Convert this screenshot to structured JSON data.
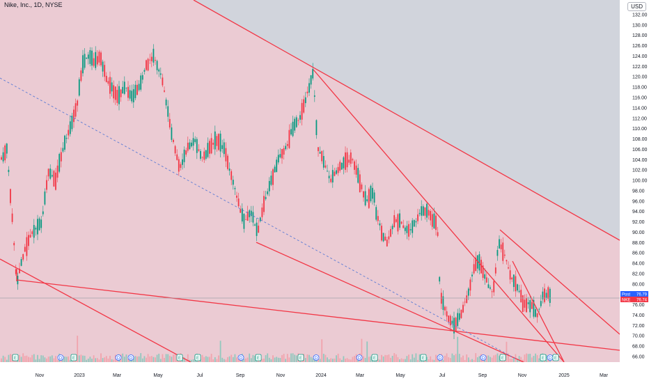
{
  "title": "Nike, Inc., 1D, NYSE",
  "currency": "USD",
  "chart_data": {
    "type": "candlestick",
    "y_ticks": [
      66,
      68,
      70,
      72,
      74,
      76,
      78,
      80,
      82,
      84,
      86,
      88,
      90,
      92,
      94,
      96,
      98,
      100,
      102,
      104,
      106,
      108,
      110,
      112,
      114,
      116,
      118,
      120,
      122,
      124,
      126,
      128,
      130,
      132
    ],
    "x_tick_labels": [
      "Nov",
      "2023",
      "Mar",
      "May",
      "Jul",
      "Sep",
      "Nov",
      "2024",
      "Mar",
      "May",
      "Jul",
      "Sep",
      "Nov",
      "2025",
      "Mar"
    ],
    "price_tags": [
      {
        "label": "Post",
        "value": "76.79",
        "color": "#2962ff"
      },
      {
        "label": "NKE",
        "value": "76.74",
        "color": "#f23645"
      }
    ],
    "last_price": 76.74,
    "ylim": [
      64.8,
      133
    ],
    "event_markers": [
      "E",
      "D",
      "E",
      "D",
      "D",
      "E",
      "E",
      "D",
      "E",
      "E",
      "D",
      "D",
      "E",
      "E",
      "D",
      "D",
      "E",
      "E",
      "D",
      "E"
    ],
    "colors": {
      "up": "#089981",
      "down": "#f23645",
      "channel": "#f23645",
      "channel_fill": "#f7c7cf",
      "background": "#d1d4dc",
      "trend_dotted": "#5b7bd5"
    }
  }
}
